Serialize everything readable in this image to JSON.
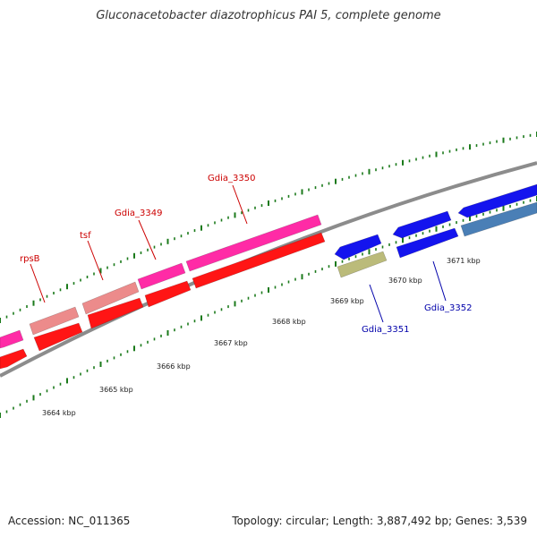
{
  "title": "Gluconacetobacter diazotrophicus PAI 5, complete genome",
  "footer": {
    "accession": "Accession: NC_011365",
    "summary": "Topology: circular; Length: 3,887,492 bp; Genes: 3,539"
  },
  "colors": {
    "backbone": "#8c8c8c",
    "forward_gene": "#ff2ba6",
    "forward_gene_light": "#ec8b8b",
    "reverse_gene": "#ff1515",
    "blue_gene": "#1414ee",
    "steel_gene": "#4a7fb6",
    "olive_gene": "#bbbb7a",
    "tick": "#1b7a1b",
    "label_forward": "#cc0000",
    "label_reverse": "#0000aa"
  },
  "scale": {
    "ticks_kbp": [
      "3664 kbp",
      "3665 kbp",
      "3666 kbp",
      "3667 kbp",
      "3668 kbp",
      "3669 kbp",
      "3670 kbp",
      "3671 kbp"
    ]
  },
  "genes": [
    {
      "label": "rpsB",
      "strand": "forward",
      "color": "forward_gene_light"
    },
    {
      "label": "tsf",
      "strand": "forward",
      "color": "forward_gene_light"
    },
    {
      "label": "Gdia_3349",
      "strand": "forward",
      "color": "forward_gene"
    },
    {
      "label": "Gdia_3350",
      "strand": "forward",
      "color": "forward_gene"
    },
    {
      "label": "Gdia_3351",
      "strand": "reverse",
      "color": "blue_gene"
    },
    {
      "label": "Gdia_3352",
      "strand": "reverse",
      "color": "blue_gene"
    }
  ]
}
